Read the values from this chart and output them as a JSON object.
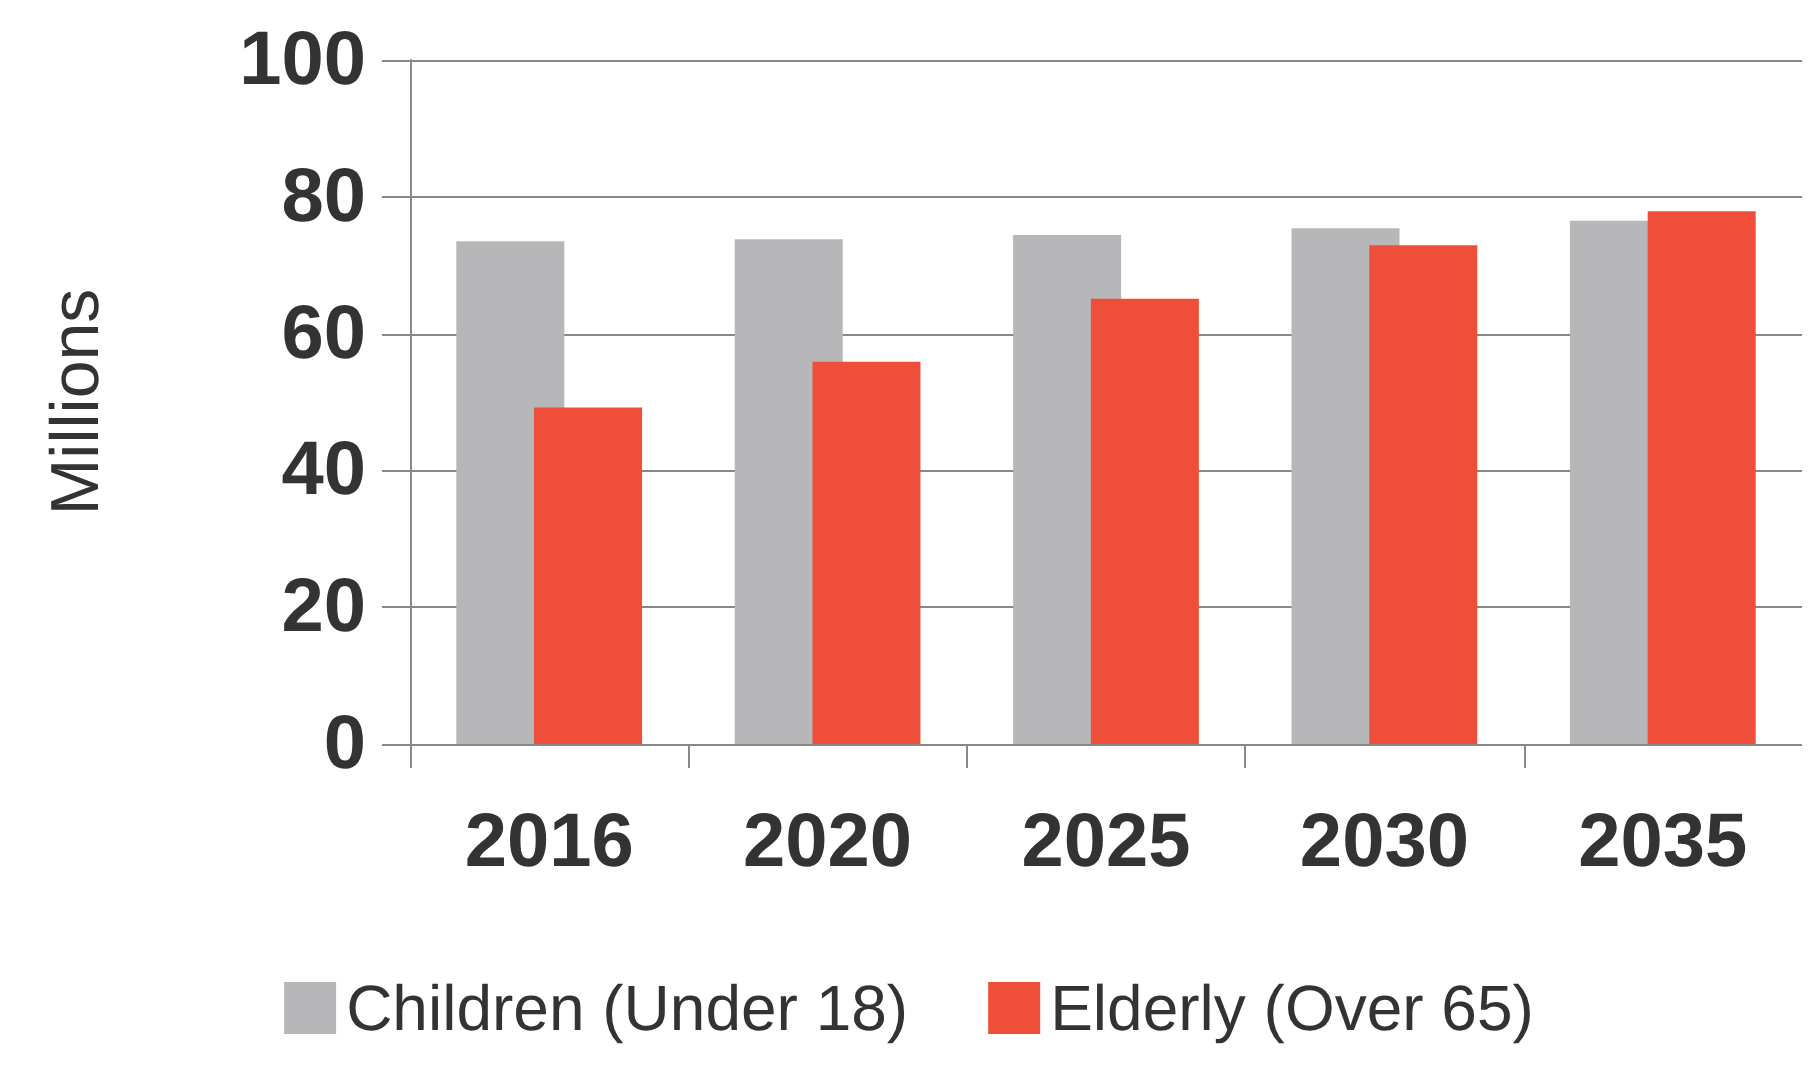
{
  "chart_data": {
    "type": "bar",
    "ylabel": "Millions",
    "categories": [
      "2016",
      "2020",
      "2025",
      "2030",
      "2035"
    ],
    "series": [
      {
        "name": "Children (Under 18)",
        "color": "#b7b7b9",
        "values": [
          73.5,
          73.8,
          74.4,
          75.4,
          76.5
        ]
      },
      {
        "name": "Elderly (Over 65)",
        "color": "#ef4f38",
        "values": [
          49.2,
          55.9,
          65.1,
          72.9,
          77.9
        ]
      }
    ],
    "ylim": [
      0,
      100
    ],
    "yticks": [
      0,
      20,
      40,
      60,
      80,
      100
    ],
    "grid": "y",
    "legend": "bottom"
  }
}
